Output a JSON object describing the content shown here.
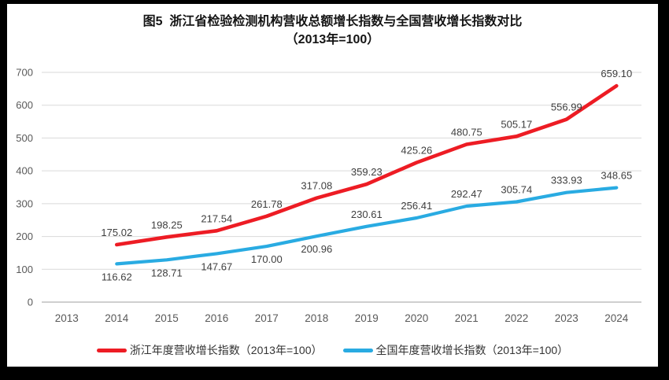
{
  "figure": {
    "title_line1": "图5  浙江省检验检测机构营收总额增长指数与全国营收增长指数对比",
    "title_line2": "（2013年=100）"
  },
  "chart_data": {
    "type": "line",
    "title": "图5 浙江省检验检测机构营收总额增长指数与全国营收增长指数对比（2013年=100）",
    "categories": [
      "2013",
      "2014",
      "2015",
      "2016",
      "2017",
      "2018",
      "2019",
      "2020",
      "2021",
      "2022",
      "2023",
      "2024"
    ],
    "series": [
      {
        "name": "浙江年度营收增长指数（2013年=100）",
        "color": "#ed1c24",
        "values": [
          null,
          175.02,
          198.25,
          217.54,
          261.78,
          317.08,
          359.23,
          425.26,
          480.75,
          505.17,
          556.99,
          659.1
        ],
        "label_positions": [
          null,
          "above",
          "above",
          "above",
          "above",
          "above",
          "above",
          "above",
          "above",
          "above",
          "above",
          "above"
        ]
      },
      {
        "name": "全国年度营收增长指数（2013年=100）",
        "color": "#29abe2",
        "values": [
          null,
          116.62,
          128.71,
          147.67,
          170.0,
          200.96,
          230.61,
          256.41,
          292.47,
          305.74,
          333.93,
          348.65
        ],
        "label_positions": [
          null,
          "below",
          "below",
          "below",
          "below",
          "below",
          "above",
          "above",
          "above",
          "above",
          "above",
          "above"
        ]
      }
    ],
    "ylim": [
      0,
      700
    ],
    "ytick_step": 100,
    "yticks": [
      0,
      100,
      200,
      300,
      400,
      500,
      600,
      700
    ],
    "grid": true,
    "legend_position": "bottom",
    "axis_label_color": "#595959",
    "gridline_color": "#d9d9d9",
    "baseline_color": "#bfbfbf",
    "data_label_color": "#3f3f3f"
  }
}
